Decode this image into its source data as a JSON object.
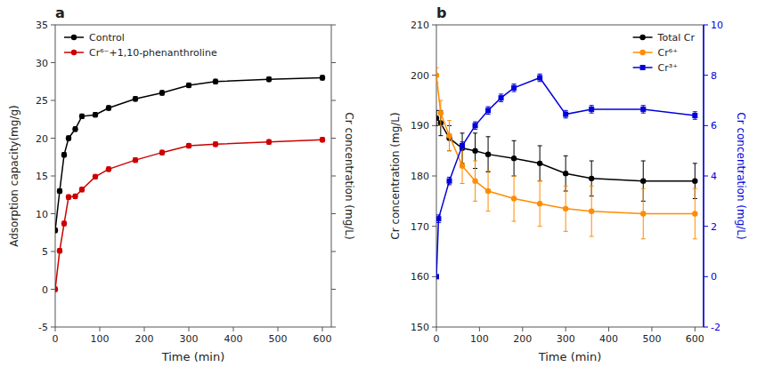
{
  "chart_data": [
    {
      "type": "line",
      "xlabel": "Time (min)",
      "ylabel": "Adsorption capacity(mg/g)",
      "y2label": "Cr concentration (mg/L)",
      "xlim": [
        0,
        620
      ],
      "xticks": [
        0,
        100,
        200,
        300,
        400,
        500,
        600
      ],
      "ylim": [
        -5,
        35
      ],
      "yticks": [
        -5,
        0,
        5,
        10,
        15,
        20,
        25,
        30,
        35
      ],
      "legend": "upper left",
      "annotations": [
        "a"
      ],
      "series": [
        {
          "name": "Control",
          "color": "#000000",
          "marker": "circle",
          "x": [
            0,
            10,
            20,
            30,
            45,
            60,
            90,
            120,
            180,
            240,
            300,
            360,
            480,
            600
          ],
          "values": [
            7.8,
            13.0,
            17.8,
            20.0,
            21.2,
            22.9,
            23.1,
            24.0,
            25.2,
            26.0,
            27.0,
            27.5,
            27.8,
            28.0
          ],
          "errors": [
            0.3,
            0.3,
            0.3,
            0.3,
            0.3,
            0.3,
            0.3,
            0.3,
            0.3,
            0.3,
            0.3,
            0.3,
            0.3,
            0.3
          ]
        },
        {
          "name": "Cr⁶⁻+1,10-phenanthroline",
          "color": "#cc0000",
          "marker": "circle",
          "x": [
            0,
            10,
            20,
            30,
            45,
            60,
            90,
            120,
            180,
            240,
            300,
            360,
            480,
            600
          ],
          "values": [
            0,
            5.1,
            8.7,
            12.2,
            12.3,
            13.2,
            14.9,
            15.9,
            17.1,
            18.1,
            19.0,
            19.2,
            19.5,
            19.8
          ],
          "errors": [
            0.3,
            0.3,
            0.3,
            0.3,
            0.3,
            0.3,
            0.3,
            0.3,
            0.3,
            0.3,
            0.3,
            0.3,
            0.3,
            0.3
          ]
        }
      ]
    },
    {
      "type": "line",
      "xlabel": "Time (min)",
      "ylabel": "Cr concentration (mg/L)",
      "y2label": "Cr concentration (mg/L)",
      "xlim": [
        0,
        620
      ],
      "xticks": [
        0,
        100,
        200,
        300,
        400,
        500,
        600
      ],
      "ylim": [
        150,
        210
      ],
      "yticks": [
        150,
        160,
        170,
        180,
        190,
        200,
        210
      ],
      "y2lim": [
        -2,
        10
      ],
      "y2ticks": [
        -2,
        0,
        2,
        4,
        6,
        8,
        10
      ],
      "legend": "upper right",
      "annotations": [
        "b"
      ],
      "series": [
        {
          "name": "Total Cr",
          "color": "#000000",
          "marker": "circle",
          "x": [
            0,
            10,
            30,
            60,
            90,
            120,
            180,
            240,
            300,
            360,
            480,
            600
          ],
          "values": [
            191.5,
            190.5,
            187.5,
            185.5,
            185.0,
            184.3,
            183.5,
            182.5,
            180.5,
            179.5,
            179.0,
            179.0
          ],
          "errors": [
            1.5,
            2.5,
            2.5,
            3.0,
            3.5,
            3.5,
            3.5,
            3.5,
            3.5,
            3.5,
            4.0,
            3.5
          ]
        },
        {
          "name": "Cr⁶⁺",
          "color": "#ff8c00",
          "marker": "circle",
          "x": [
            0,
            10,
            30,
            60,
            90,
            120,
            180,
            240,
            300,
            360,
            480,
            600
          ],
          "values": [
            200.0,
            192.5,
            188.0,
            182.0,
            179.0,
            177.0,
            175.5,
            174.5,
            173.5,
            173.0,
            172.5,
            172.5
          ],
          "errors": [
            1.5,
            2.5,
            3.0,
            3.5,
            4.0,
            4.0,
            4.5,
            4.5,
            4.5,
            5.0,
            5.0,
            5.0
          ]
        },
        {
          "name": "Cr³⁺",
          "color": "#0000dd",
          "marker": "square",
          "axis": "y2",
          "x": [
            0,
            5,
            30,
            60,
            90,
            120,
            150,
            180,
            240,
            300,
            360,
            480,
            600
          ],
          "values": [
            0.0,
            2.3,
            3.8,
            5.2,
            6.0,
            6.6,
            7.1,
            7.5,
            7.9,
            6.45,
            6.65,
            6.65,
            6.4
          ],
          "errors": [
            0.05,
            0.15,
            0.15,
            0.15,
            0.15,
            0.15,
            0.15,
            0.15,
            0.15,
            0.15,
            0.15,
            0.15,
            0.15
          ]
        }
      ]
    }
  ]
}
